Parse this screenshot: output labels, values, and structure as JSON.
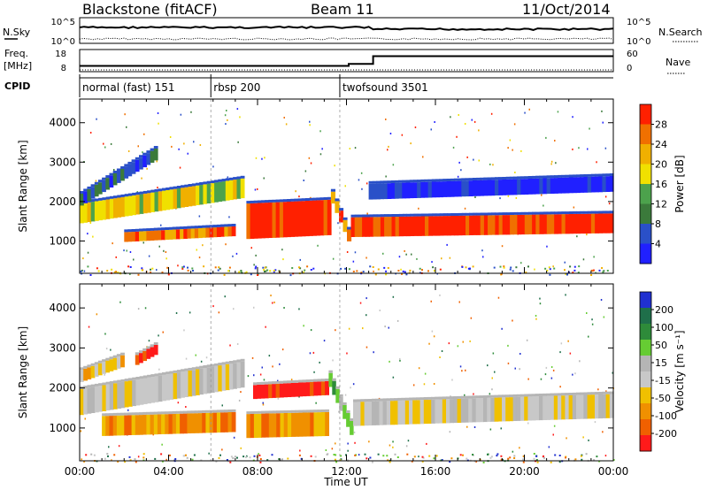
{
  "header": {
    "radar": "Blackstone (fitACF)",
    "beam": "Beam 11",
    "date": "11/Oct/2014"
  },
  "summary": {
    "nsky_label": "N.Sky",
    "nsearch_label": "N.Search",
    "freq_label_top": "Freq.",
    "freq_label_units": "[MHz]",
    "nave_label": "Nave",
    "cpid_label": "CPID",
    "noise_ticks_left": [
      "10^5",
      "10^0"
    ],
    "noise_ticks_right": [
      "10^5",
      "10^0"
    ],
    "freq_ticks": [
      "18",
      "8"
    ],
    "nave_ticks": [
      "60",
      "0"
    ]
  },
  "colors": {
    "power": [
      "#2020ff",
      "#2a50c8",
      "#3b7a3b",
      "#4ca24c",
      "#f0e000",
      "#f0b000",
      "#f07000",
      "#ff2000"
    ],
    "velocity": [
      "#2030d0",
      "#1f6f4a",
      "#2e8b3a",
      "#66cc33",
      "#b5b5b5",
      "#c8c8c8",
      "#f0c000",
      "#f09000",
      "#f06000",
      "#ff1a1a"
    ]
  },
  "chart_data": {
    "type": "heatmap",
    "x_axis": {
      "label": "Time UT",
      "ticks": [
        "00:00",
        "04:00",
        "08:00",
        "12:00",
        "16:00",
        "20:00",
        "00:00"
      ],
      "range_hours": [
        0,
        24
      ]
    },
    "cpid_segments": [
      {
        "label": "normal (fast) 151",
        "start_hour": 0,
        "end_hour": 5.9
      },
      {
        "label": "rbsp 200",
        "start_hour": 5.9,
        "end_hour": 11.7
      },
      {
        "label": "twofsound 3501",
        "start_hour": 11.7,
        "end_hour": 24
      }
    ],
    "frequency_mhz": [
      {
        "start_hour": 0,
        "end_hour": 12.1,
        "value": 10.5
      },
      {
        "start_hour": 12.1,
        "end_hour": 13.2,
        "value": 11.5
      },
      {
        "start_hour": 13.2,
        "end_hour": 24,
        "value": 15.5
      }
    ],
    "panels": [
      {
        "name": "power",
        "ylabel": "Slant Range [km]",
        "yticks": [
          "1000",
          "2000",
          "3000",
          "4000"
        ],
        "yrange_km": [
          180,
          4600
        ],
        "colorbar_label": "Power [dB]",
        "colorbar_ticks": [
          "4",
          "8",
          "12",
          "16",
          "20",
          "24",
          "28"
        ],
        "colorbar_range": [
          0,
          32
        ],
        "bands": [
          {
            "t": [
              0.0,
              7.4
            ],
            "center_km": [
              1700,
              2350
            ],
            "width_km": 500,
            "level": 4
          },
          {
            "t": [
              0.0,
              3.5
            ],
            "center_km": [
              2050,
              3250
            ],
            "width_km": 300,
            "level": 1
          },
          {
            "t": [
              2.0,
              7.0
            ],
            "center_km": [
              1100,
              1250
            ],
            "width_km": 250,
            "level": 6
          },
          {
            "t": [
              7.5,
              11.3
            ],
            "center_km": [
              1500,
              1600
            ],
            "width_km": 900,
            "level": 7
          },
          {
            "t": [
              11.3,
              12.2
            ],
            "center_km": [
              2100,
              900
            ],
            "width_km": 300,
            "level": 6
          },
          {
            "t": [
              12.2,
              24.0
            ],
            "center_km": [
              1350,
              1450
            ],
            "width_km": 500,
            "level": 7
          },
          {
            "t": [
              13.0,
              24.0
            ],
            "center_km": [
              2250,
              2450
            ],
            "width_km": 400,
            "level": 0
          }
        ]
      },
      {
        "name": "velocity",
        "ylabel": "Slant Range [km]",
        "yticks": [
          "1000",
          "2000",
          "3000",
          "4000"
        ],
        "yrange_km": [
          180,
          4600
        ],
        "colorbar_label": "Velocity [m s^-1]",
        "colorbar_ticks": [
          "200",
          "100",
          "50",
          "15",
          "-15",
          "-50",
          "-100",
          "-200"
        ],
        "colorbar_range": [
          -250,
          250
        ],
        "bands": [
          {
            "t": [
              0.0,
              7.4
            ],
            "center_km": [
              1650,
              2350
            ],
            "width_km": 650,
            "level": 5
          },
          {
            "t": [
              0.0,
              2.0
            ],
            "center_km": [
              2300,
              2700
            ],
            "width_km": 300,
            "level": 6
          },
          {
            "t": [
              2.5,
              3.5
            ],
            "center_km": [
              2700,
              3000
            ],
            "width_km": 250,
            "level": 9
          },
          {
            "t": [
              1.0,
              7.0
            ],
            "center_km": [
              1050,
              1150
            ],
            "width_km": 500,
            "level": 7
          },
          {
            "t": [
              7.5,
              11.2
            ],
            "center_km": [
              1050,
              1100
            ],
            "width_km": 600,
            "level": 7
          },
          {
            "t": [
              7.8,
              11.2
            ],
            "center_km": [
              1900,
              2000
            ],
            "width_km": 350,
            "level": 9
          },
          {
            "t": [
              11.2,
              12.3
            ],
            "center_km": [
              2200,
              800
            ],
            "width_km": 350,
            "level": 3
          },
          {
            "t": [
              12.3,
              24.0
            ],
            "center_km": [
              1350,
              1550
            ],
            "width_km": 600,
            "level": 5
          }
        ]
      }
    ]
  }
}
